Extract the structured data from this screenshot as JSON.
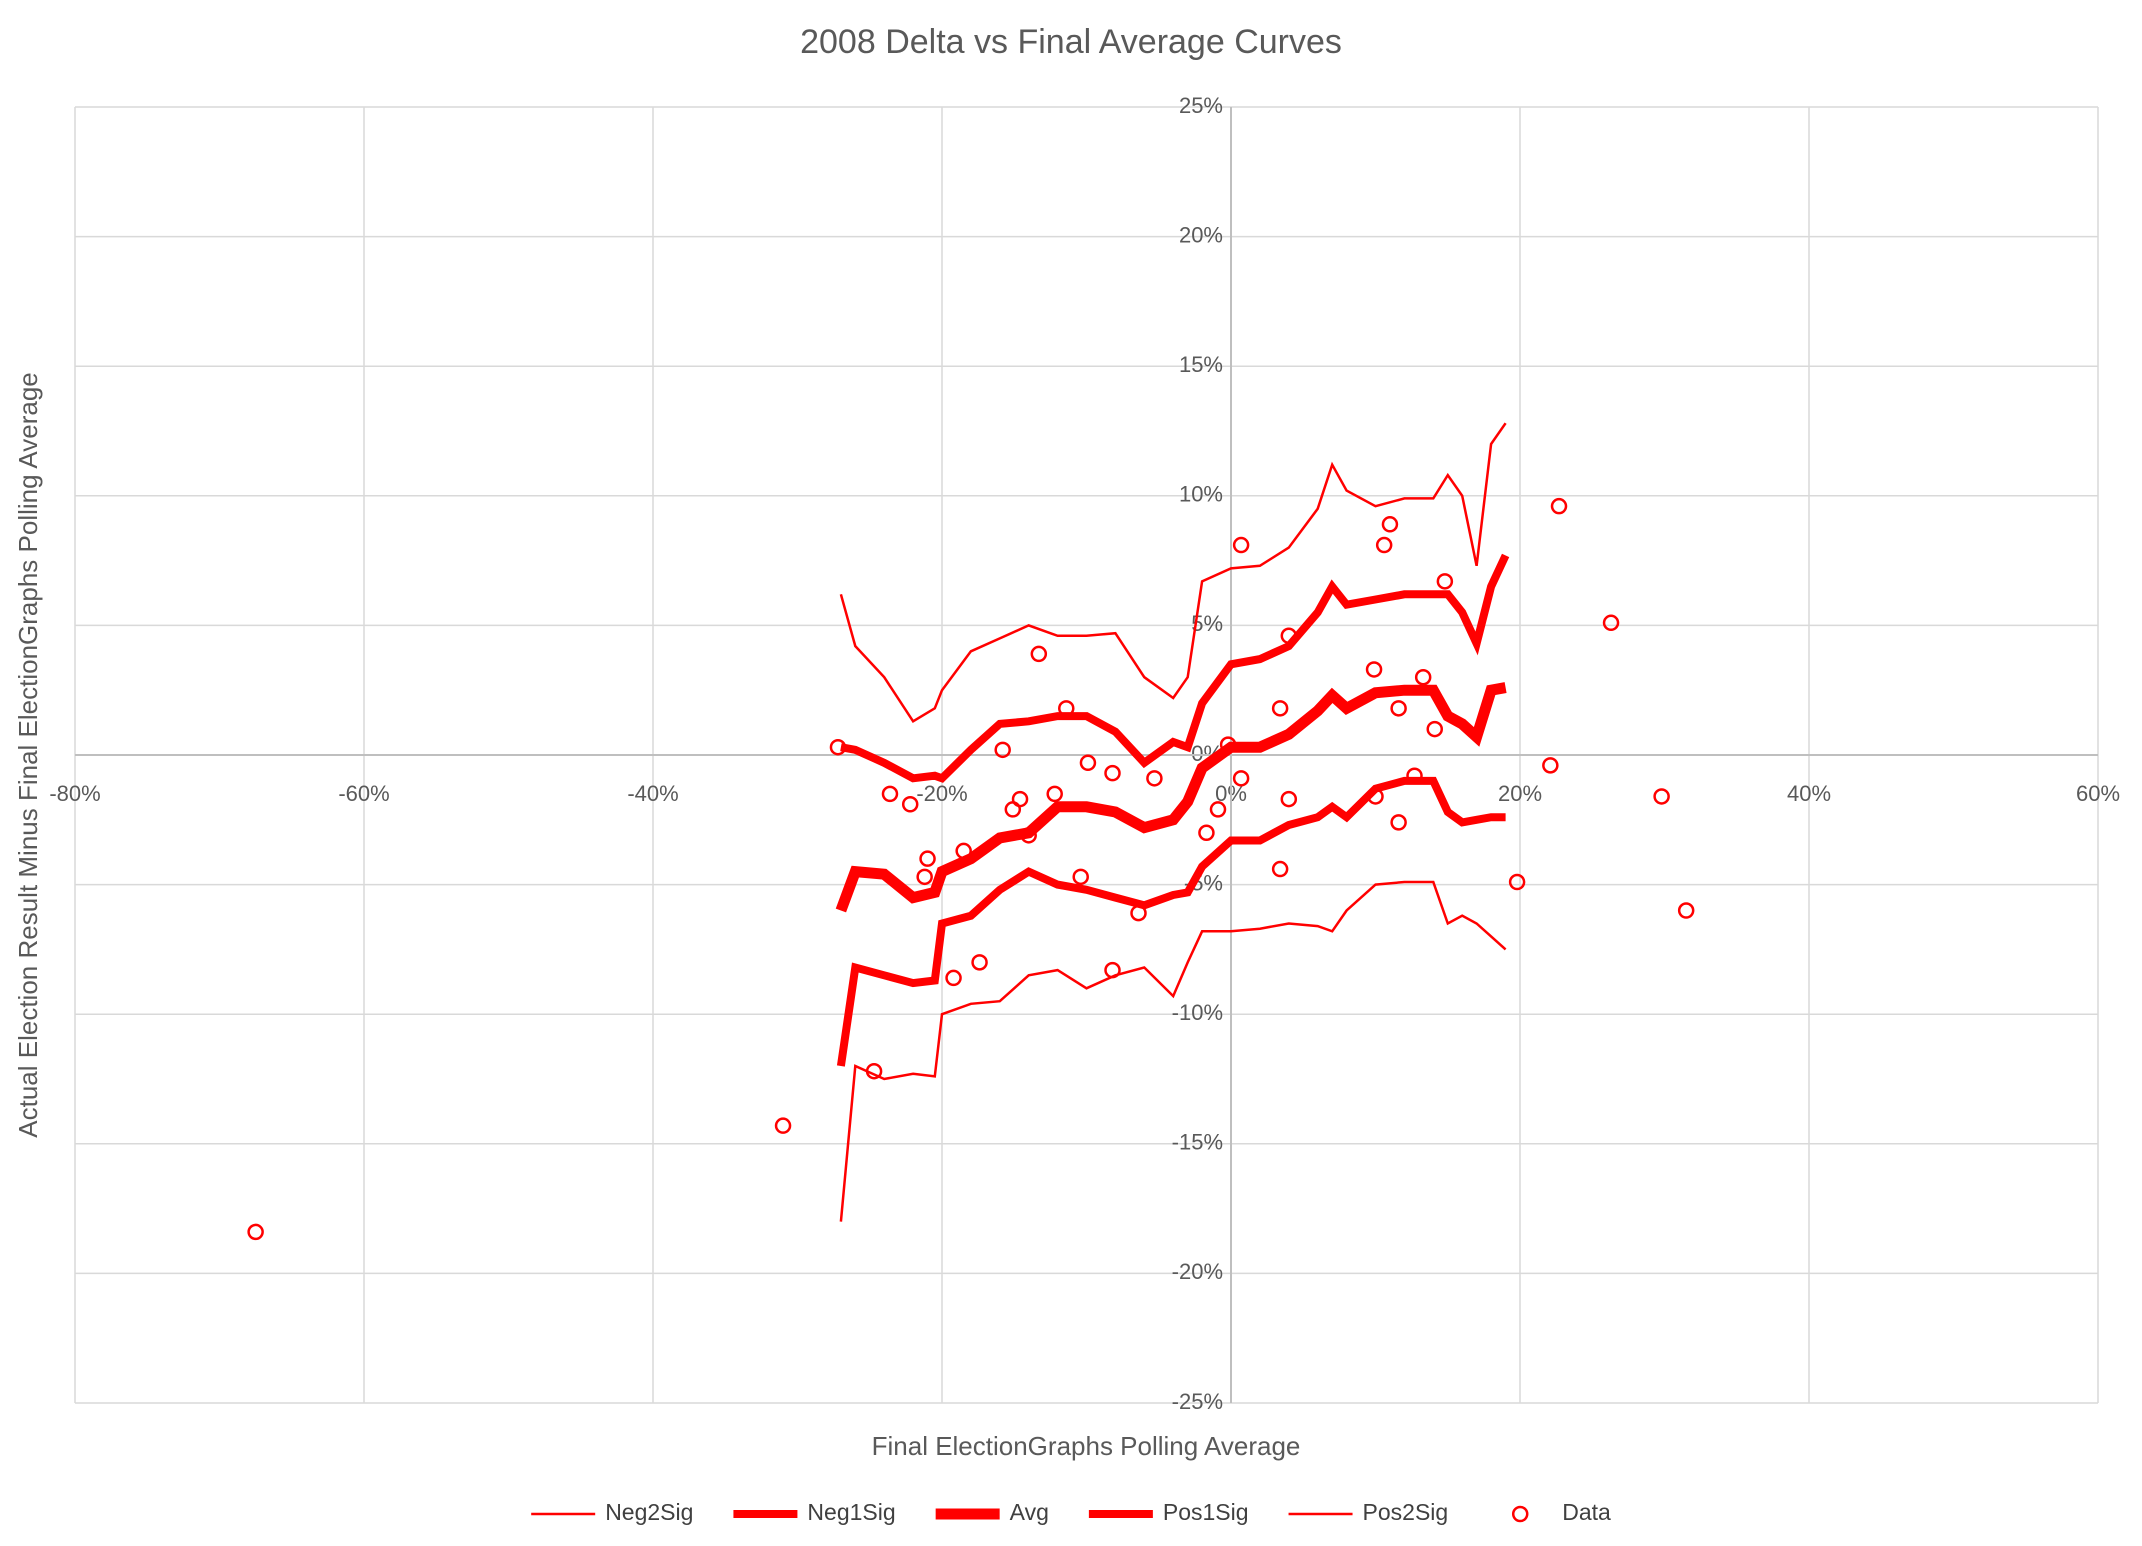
{
  "chart_data": {
    "type": "scatter",
    "title": "2008 Delta vs Final Average Curves",
    "x_label": "Final ElectionGraphs Polling Average",
    "y_label": "Actual Election Result Minus Final ElectionGraphs Polling Average",
    "xlim": [
      -80,
      60
    ],
    "ylim": [
      -25,
      25
    ],
    "xticks": [
      {
        "value": -80,
        "label": "-80%"
      },
      {
        "value": -60,
        "label": "-60%"
      },
      {
        "value": -40,
        "label": "-40%"
      },
      {
        "value": -20,
        "label": "-20%"
      },
      {
        "value": 0,
        "label": "0%"
      },
      {
        "value": 20,
        "label": "20%"
      },
      {
        "value": 40,
        "label": "40%"
      },
      {
        "value": 60,
        "label": "60%"
      }
    ],
    "yticks": [
      {
        "value": -25,
        "label": "-25%"
      },
      {
        "value": -20,
        "label": "-20%"
      },
      {
        "value": -15,
        "label": "-15%"
      },
      {
        "value": -10,
        "label": "-10%"
      },
      {
        "value": -5,
        "label": "-5%"
      },
      {
        "value": 0,
        "label": "0%"
      },
      {
        "value": 5,
        "label": "5%"
      },
      {
        "value": 10,
        "label": "10%"
      },
      {
        "value": 15,
        "label": "15%"
      },
      {
        "value": 20,
        "label": "20%"
      },
      {
        "value": 25,
        "label": "25%"
      }
    ],
    "grid": true,
    "legend": "bottom",
    "series": [
      {
        "name": "Neg2Sig",
        "color": "#ff0000",
        "style": "line",
        "line_width": 2.5,
        "x": [
          -27,
          -26,
          -24,
          -22,
          -20.5,
          -20,
          -18,
          -16,
          -14,
          -12,
          -10,
          -8,
          -6,
          -4,
          -3,
          -2,
          0,
          2,
          4,
          6,
          7,
          8,
          10,
          12,
          14,
          15,
          16,
          17,
          18,
          19
        ],
        "values": [
          -18,
          -12,
          -12.5,
          -12.3,
          -12.4,
          -10,
          -9.6,
          -9.5,
          -8.5,
          -8.3,
          -9,
          -8.5,
          -8.2,
          -9.3,
          -8,
          -6.8,
          -6.8,
          -6.7,
          -6.5,
          -6.6,
          -6.8,
          -6,
          -5,
          -4.9,
          -4.9,
          -6.5,
          -6.2,
          -6.5,
          -7,
          -7.5
        ]
      },
      {
        "name": "Neg1Sig",
        "color": "#ff0000",
        "style": "line",
        "line_width": 8,
        "x": [
          -27,
          -26,
          -24,
          -22,
          -20.5,
          -20,
          -18,
          -16,
          -14,
          -12,
          -10,
          -8,
          -6,
          -4,
          -3,
          -2,
          0,
          2,
          4,
          6,
          7,
          8,
          10,
          12,
          14,
          15,
          16,
          17,
          18,
          19
        ],
        "values": [
          -12,
          -8.2,
          -8.5,
          -8.8,
          -8.7,
          -6.5,
          -6.2,
          -5.2,
          -4.5,
          -5,
          -5.2,
          -5.5,
          -5.8,
          -5.4,
          -5.3,
          -4.3,
          -3.3,
          -3.3,
          -2.7,
          -2.4,
          -2,
          -2.4,
          -1.3,
          -1,
          -1,
          -2.2,
          -2.6,
          -2.5,
          -2.4,
          -2.4
        ]
      },
      {
        "name": "Avg",
        "color": "#ff0000",
        "style": "line",
        "line_width": 11,
        "x": [
          -27,
          -26,
          -24,
          -22,
          -20.5,
          -20,
          -18,
          -16,
          -14,
          -12,
          -10,
          -8,
          -6,
          -4,
          -3,
          -2,
          0,
          2,
          4,
          6,
          7,
          8,
          10,
          12,
          14,
          15,
          16,
          17,
          18,
          19
        ],
        "values": [
          -6,
          -4.5,
          -4.6,
          -5.5,
          -5.3,
          -4.5,
          -4,
          -3.2,
          -3,
          -2,
          -2,
          -2.2,
          -2.8,
          -2.5,
          -1.8,
          -0.5,
          0.3,
          0.3,
          0.8,
          1.7,
          2.3,
          1.8,
          2.4,
          2.5,
          2.5,
          1.5,
          1.2,
          0.7,
          2.5,
          2.6
        ]
      },
      {
        "name": "Pos1Sig",
        "color": "#ff0000",
        "style": "line",
        "line_width": 8,
        "x": [
          -27,
          -26,
          -24,
          -22,
          -20.5,
          -20,
          -18,
          -16,
          -14,
          -12,
          -10,
          -8,
          -6,
          -4,
          -3,
          -2,
          0,
          2,
          4,
          6,
          7,
          8,
          10,
          12,
          14,
          15,
          16,
          17,
          18,
          19
        ],
        "values": [
          0.3,
          0.2,
          -0.3,
          -0.9,
          -0.8,
          -0.9,
          0.2,
          1.2,
          1.3,
          1.5,
          1.5,
          0.9,
          -0.3,
          0.5,
          0.3,
          2,
          3.5,
          3.7,
          4.2,
          5.5,
          6.5,
          5.8,
          6,
          6.2,
          6.2,
          6.2,
          5.5,
          4.3,
          6.5,
          7.7
        ]
      },
      {
        "name": "Pos2Sig",
        "color": "#ff0000",
        "style": "line",
        "line_width": 2.5,
        "x": [
          -27,
          -26,
          -24,
          -22,
          -20.5,
          -20,
          -18,
          -16,
          -14,
          -12,
          -10,
          -8,
          -6,
          -4,
          -3,
          -2,
          0,
          2,
          4,
          6,
          7,
          8,
          10,
          12,
          14,
          15,
          16,
          17,
          18,
          19
        ],
        "values": [
          6.2,
          4.2,
          3,
          1.3,
          1.8,
          2.5,
          4,
          4.5,
          5,
          4.6,
          4.6,
          4.7,
          3,
          2.2,
          3,
          6.7,
          7.2,
          7.3,
          8,
          9.5,
          11.2,
          10.2,
          9.6,
          9.9,
          9.9,
          10.8,
          10,
          7.3,
          12,
          12.8
        ]
      },
      {
        "name": "Data",
        "color": "#ff0000",
        "style": "marker",
        "x": [
          -67.5,
          -31,
          -27.2,
          -24.7,
          -23.6,
          -22.2,
          -21,
          -21.2,
          -19.2,
          -18.5,
          -17.4,
          -15.8,
          -15.1,
          -14.6,
          -14,
          -13.3,
          -12.2,
          -11.4,
          -10.4,
          -9.9,
          -8.2,
          -8.2,
          -6.4,
          -5.3,
          -1.7,
          -0.9,
          -0.2,
          0.7,
          0.7,
          3.4,
          3.4,
          4,
          4,
          9.9,
          10,
          10.6,
          11,
          11.6,
          11.6,
          12.7,
          13.3,
          14.1,
          14.8,
          19.8,
          22.1,
          22.7,
          26.3,
          29.8,
          31.5
        ],
        "values": [
          -18.4,
          -14.3,
          0.3,
          -12.2,
          -1.5,
          -1.9,
          -4,
          -4.7,
          -8.6,
          -3.7,
          -8,
          0.2,
          -2.1,
          -1.7,
          -3.1,
          3.9,
          -1.5,
          1.8,
          -4.7,
          -0.3,
          -0.7,
          -8.3,
          -6.1,
          -0.9,
          -3,
          -2.1,
          0.4,
          -0.9,
          8.1,
          -4.4,
          1.8,
          4.6,
          -1.7,
          3.3,
          -1.6,
          8.1,
          8.9,
          1.8,
          -2.6,
          -0.8,
          3,
          1,
          6.7,
          -4.9,
          -0.4,
          9.6,
          5.1,
          -1.6,
          -6
        ]
      }
    ]
  }
}
